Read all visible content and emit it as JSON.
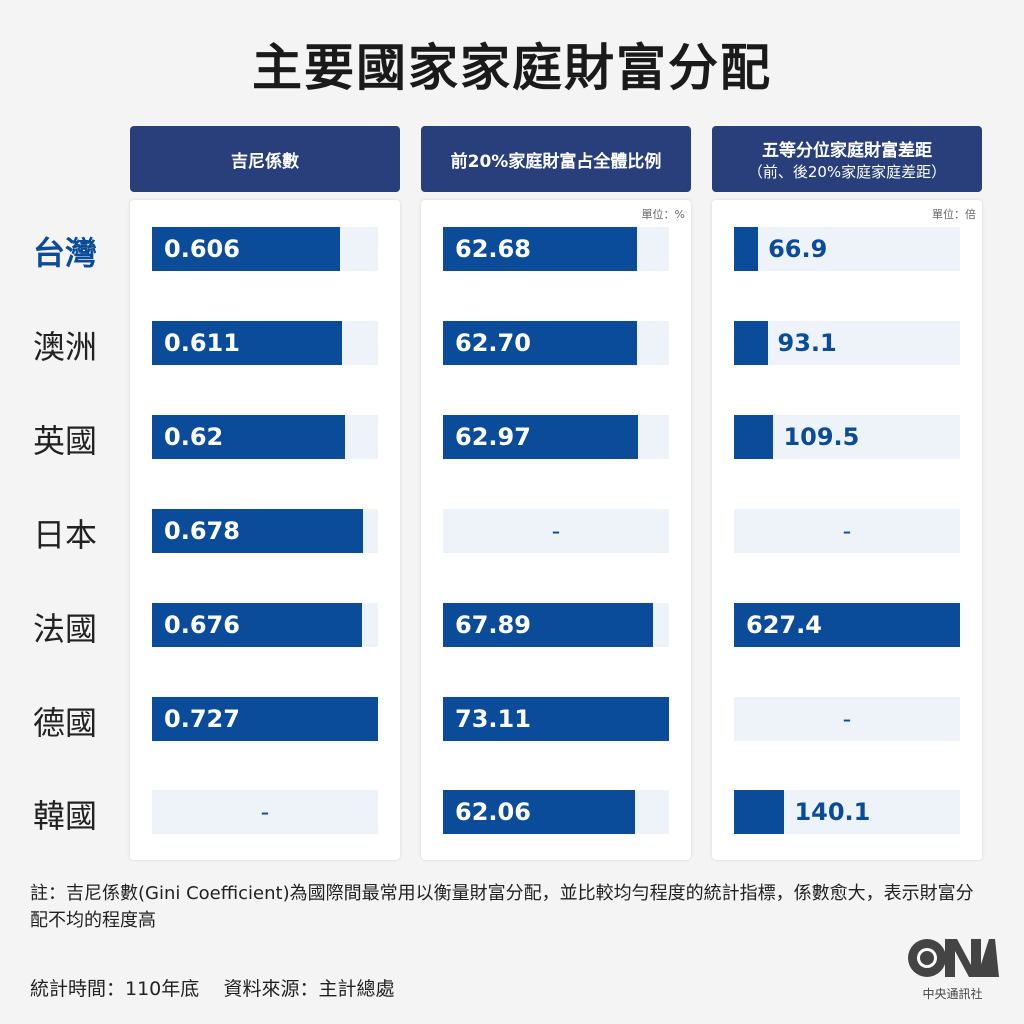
{
  "title": "主要國家家庭財富分配",
  "chart_data": [
    {
      "type": "bar",
      "orientation": "horizontal",
      "title": "吉尼係數",
      "unit": "",
      "categories": [
        "台灣",
        "澳洲",
        "英國",
        "日本",
        "法國",
        "德國",
        "韓國"
      ],
      "values": [
        0.606,
        0.611,
        0.62,
        0.678,
        0.676,
        0.727,
        null
      ],
      "labels": [
        "0.606",
        "0.611",
        "0.62",
        "0.678",
        "0.676",
        "0.727",
        "-"
      ]
    },
    {
      "type": "bar",
      "orientation": "horizontal",
      "title": "前20%家庭財富占全體比例",
      "unit": "單位：%",
      "categories": [
        "台灣",
        "澳洲",
        "英國",
        "日本",
        "法國",
        "德國",
        "韓國"
      ],
      "values": [
        62.68,
        62.7,
        62.97,
        null,
        67.89,
        73.11,
        62.06
      ],
      "labels": [
        "62.68",
        "62.70",
        "62.97",
        "-",
        "67.89",
        "73.11",
        "62.06"
      ]
    },
    {
      "type": "bar",
      "orientation": "horizontal",
      "title": "五等分位家庭財富差距",
      "subtitle": "（前、後20%家庭家庭差距）",
      "unit": "單位：倍",
      "categories": [
        "台灣",
        "澳洲",
        "英國",
        "日本",
        "法國",
        "德國",
        "韓國"
      ],
      "values": [
        66.9,
        93.1,
        109.5,
        null,
        627.4,
        null,
        140.1
      ],
      "labels": [
        "66.9",
        "93.1",
        "109.5",
        "-",
        "627.4",
        "-",
        "140.1"
      ]
    }
  ],
  "highlight_country": "台灣",
  "colors": {
    "bar": "#0b4c9a",
    "header": "#283f7b",
    "track": "#eef2f9"
  },
  "note": "註：吉尼係數(Gini Coefficient)為國際間最常用以衡量財富分配，並比較均勻程度的統計指標，係數愈大，表示財富分配不均的程度高",
  "footer": {
    "time": "統計時間：110年底",
    "source": "資料來源：主計總處"
  },
  "logo": {
    "text": "CNA",
    "name": "中央通訊社"
  }
}
